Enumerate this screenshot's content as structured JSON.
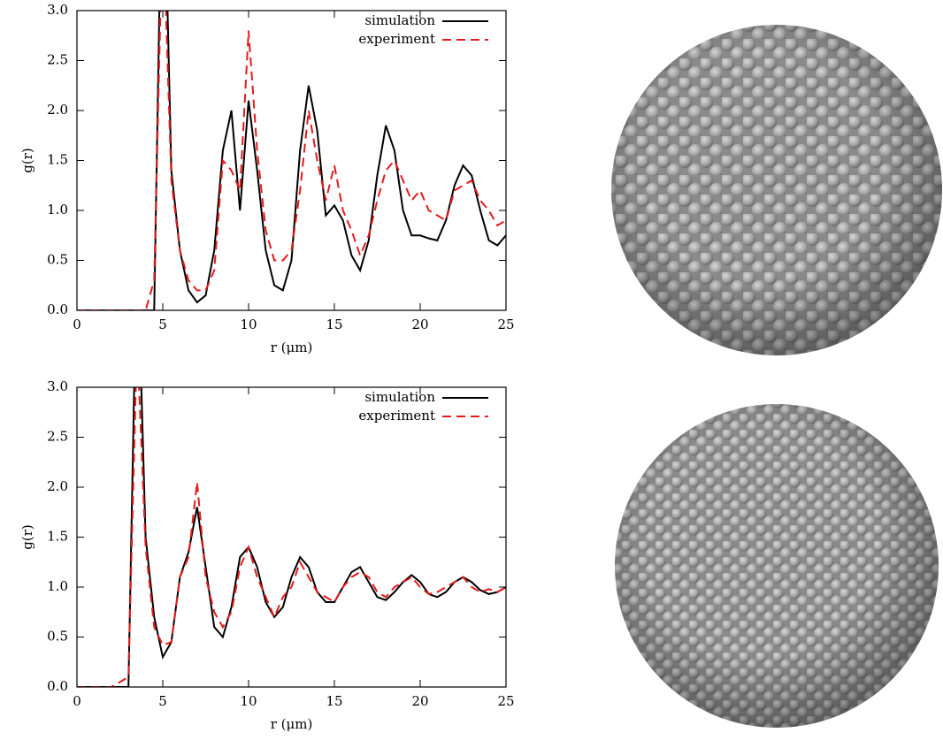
{
  "chart_data": [
    {
      "type": "line",
      "xlabel": "r (μm)",
      "ylabel": "g(r)",
      "x": [
        0,
        0.5,
        1,
        1.5,
        2,
        2.5,
        3,
        3.5,
        4,
        4.5,
        5,
        5.5,
        6,
        6.5,
        7,
        7.5,
        8,
        8.5,
        9,
        9.5,
        10,
        10.5,
        11,
        11.5,
        12,
        12.5,
        13,
        13.5,
        14,
        14.5,
        15,
        15.5,
        16,
        16.5,
        17,
        17.5,
        18,
        18.5,
        19,
        19.5,
        20,
        20.5,
        21,
        21.5,
        22,
        22.5,
        23,
        23.5,
        24,
        24.5,
        25
      ],
      "series": [
        {
          "name": "simulation",
          "color": "#000000",
          "dashed": false,
          "values": [
            0,
            0,
            0,
            0,
            0,
            0,
            0,
            0,
            0,
            0,
            5,
            1.4,
            0.6,
            0.2,
            0.08,
            0.15,
            0.6,
            1.6,
            2.0,
            1.0,
            2.1,
            1.4,
            0.6,
            0.25,
            0.2,
            0.5,
            1.6,
            2.25,
            1.8,
            0.95,
            1.05,
            0.9,
            0.55,
            0.4,
            0.7,
            1.35,
            1.85,
            1.6,
            1.0,
            0.75,
            0.75,
            0.72,
            0.7,
            0.9,
            1.25,
            1.45,
            1.35,
            1.0,
            0.7,
            0.65,
            0.75
          ]
        },
        {
          "name": "experiment",
          "color": "#e41a1c",
          "dashed": true,
          "values": [
            0,
            0,
            0,
            0,
            0,
            0,
            0,
            0,
            0,
            0.3,
            4,
            1.3,
            0.6,
            0.3,
            0.2,
            0.2,
            0.4,
            1.5,
            1.4,
            1.2,
            2.8,
            1.6,
            0.8,
            0.5,
            0.5,
            0.6,
            1.2,
            2.0,
            1.5,
            1.1,
            1.45,
            1.0,
            0.8,
            0.55,
            0.75,
            1.1,
            1.4,
            1.5,
            1.3,
            1.1,
            1.2,
            1.0,
            0.95,
            0.9,
            1.2,
            1.25,
            1.3,
            1.1,
            1.0,
            0.85,
            0.9
          ]
        }
      ],
      "xlim": [
        0,
        25
      ],
      "xticks": [
        0,
        5,
        10,
        15,
        20,
        25
      ],
      "ylim": [
        0,
        3
      ],
      "yticks": [
        {
          "value": 0,
          "label": "0.0"
        },
        {
          "value": 0.5,
          "label": "0.5"
        },
        {
          "value": 1,
          "label": "1.0"
        },
        {
          "value": 1.5,
          "label": "1.5"
        },
        {
          "value": 2,
          "label": "2.0"
        },
        {
          "value": 2.5,
          "label": "2.5"
        },
        {
          "value": 3,
          "label": "3.0"
        }
      ],
      "legend": "top-right"
    },
    {
      "type": "line",
      "xlabel": "r (μm)",
      "ylabel": "g(r)",
      "x": [
        0,
        0.5,
        1,
        1.5,
        2,
        2.5,
        3,
        3.5,
        4,
        4.5,
        5,
        5.5,
        6,
        6.5,
        7,
        7.5,
        8,
        8.5,
        9,
        9.5,
        10,
        10.5,
        11,
        11.5,
        12,
        12.5,
        13,
        13.5,
        14,
        14.5,
        15,
        15.5,
        16,
        16.5,
        17,
        17.5,
        18,
        18.5,
        19,
        19.5,
        20,
        20.5,
        21,
        21.5,
        22,
        22.5,
        23,
        23.5,
        24,
        24.5,
        25
      ],
      "series": [
        {
          "name": "simulation",
          "color": "#000000",
          "dashed": false,
          "values": [
            0,
            0,
            0,
            0,
            0,
            0,
            0,
            4.5,
            1.5,
            0.7,
            0.3,
            0.45,
            1.1,
            1.35,
            1.8,
            1.2,
            0.6,
            0.5,
            0.8,
            1.3,
            1.4,
            1.2,
            0.85,
            0.7,
            0.8,
            1.1,
            1.3,
            1.2,
            0.95,
            0.85,
            0.85,
            1.0,
            1.15,
            1.2,
            1.05,
            0.9,
            0.87,
            0.95,
            1.05,
            1.12,
            1.05,
            0.93,
            0.9,
            0.95,
            1.05,
            1.1,
            1.05,
            0.97,
            0.93,
            0.95,
            1.0
          ]
        },
        {
          "name": "experiment",
          "color": "#e41a1c",
          "dashed": true,
          "values": [
            0,
            0,
            0,
            0,
            0,
            0.05,
            0.1,
            3.5,
            1.4,
            0.6,
            0.42,
            0.45,
            1.1,
            1.3,
            2.05,
            1.1,
            0.75,
            0.6,
            0.75,
            1.2,
            1.4,
            1.1,
            0.9,
            0.7,
            0.9,
            1.0,
            1.25,
            1.1,
            0.95,
            0.9,
            0.85,
            1.0,
            1.1,
            1.15,
            1.1,
            0.95,
            0.9,
            1.0,
            1.05,
            1.1,
            1.0,
            0.93,
            0.95,
            1.0,
            1.05,
            1.1,
            1.0,
            0.95,
            0.98,
            0.95,
            1.0
          ]
        }
      ],
      "xlim": [
        0,
        25
      ],
      "xticks": [
        0,
        5,
        10,
        15,
        20,
        25
      ],
      "ylim": [
        0,
        3
      ],
      "yticks": [
        {
          "value": 0,
          "label": "0.0"
        },
        {
          "value": 0.5,
          "label": "0.5"
        },
        {
          "value": 1,
          "label": "1.0"
        },
        {
          "value": 1.5,
          "label": "1.5"
        },
        {
          "value": 2,
          "label": "2.0"
        },
        {
          "value": 2.5,
          "label": "2.5"
        },
        {
          "value": 3,
          "label": "3.0"
        }
      ],
      "legend": "top-right"
    }
  ]
}
